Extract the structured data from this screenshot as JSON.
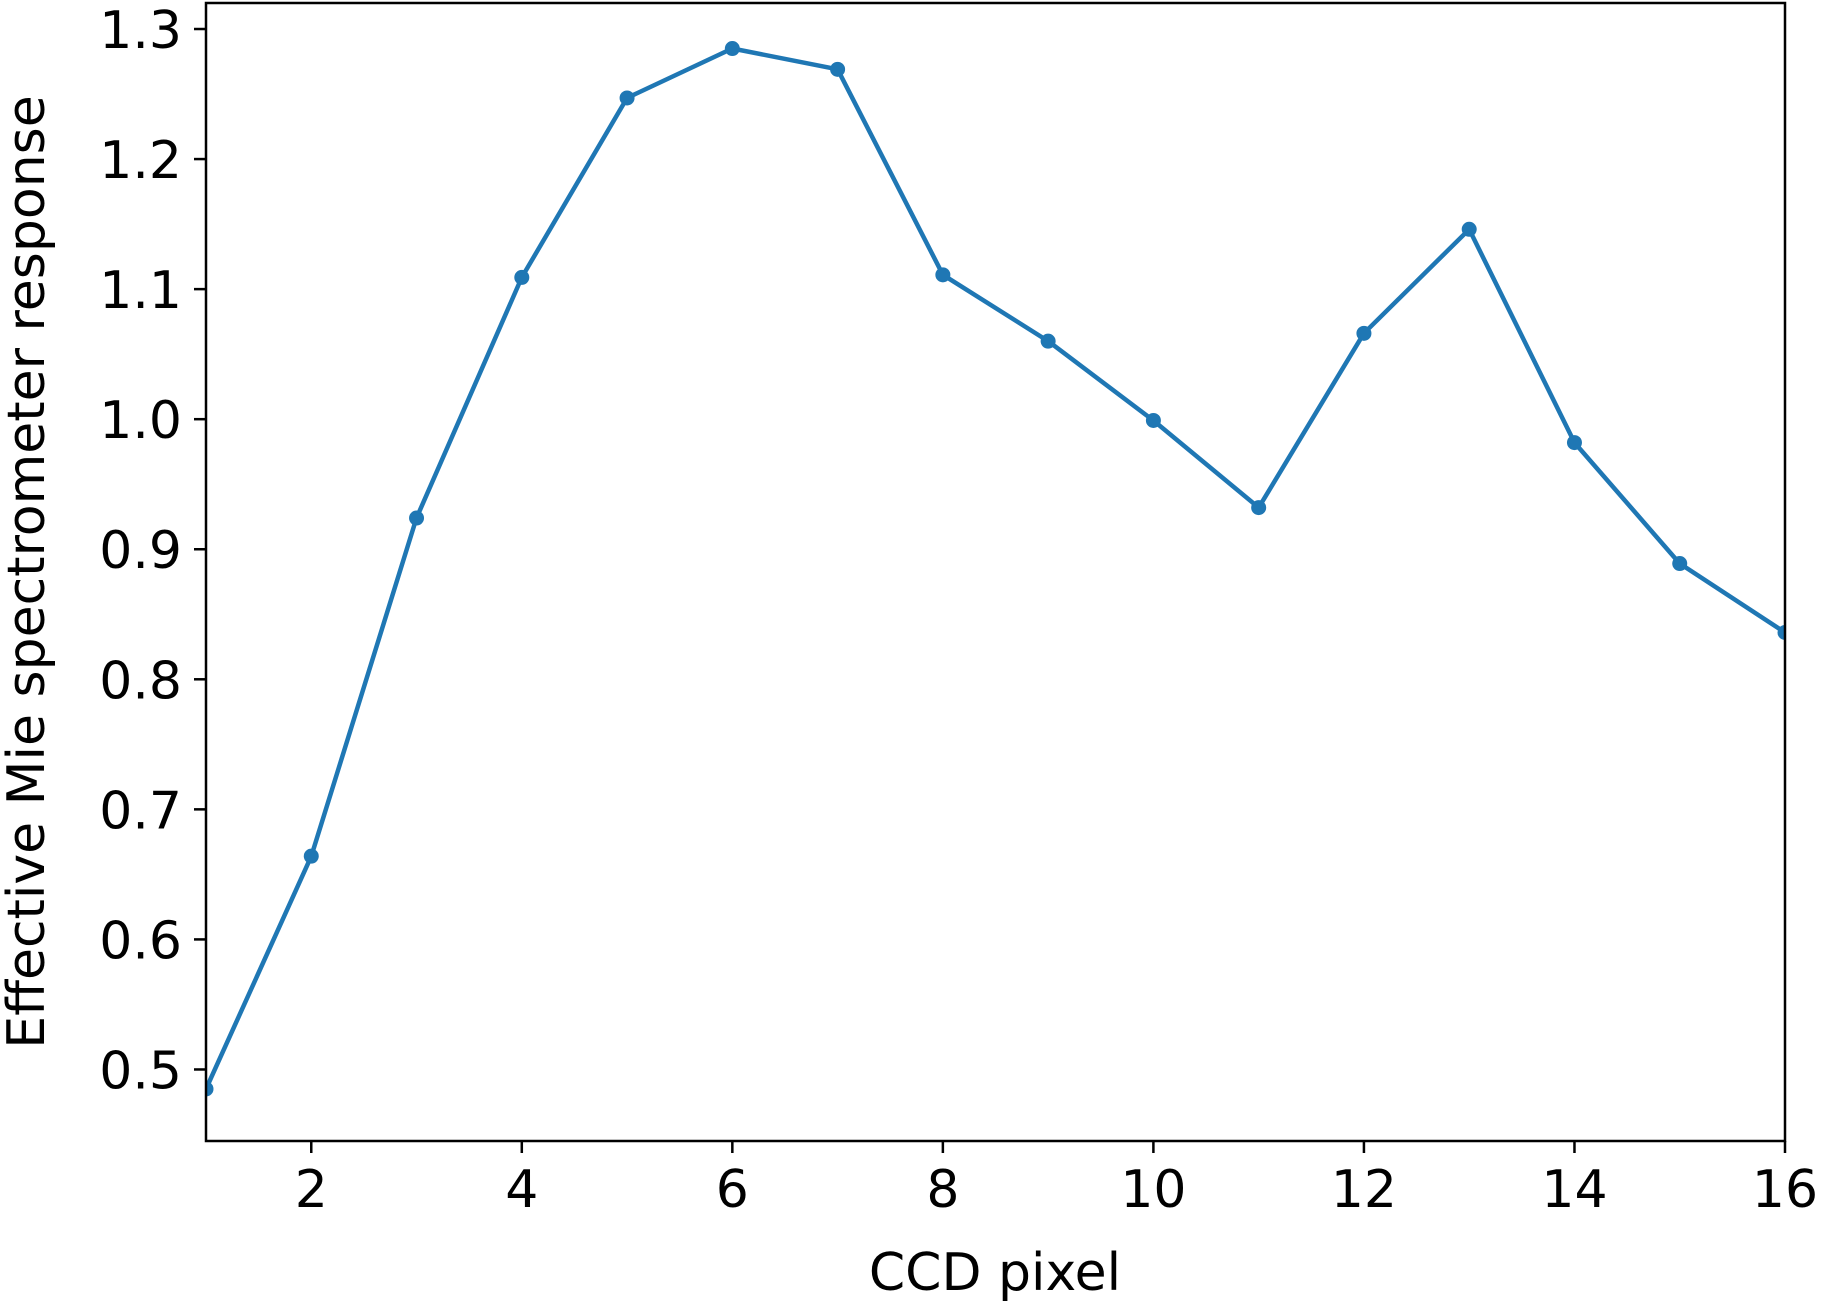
{
  "chart_data": {
    "type": "line",
    "title": "",
    "xlabel": "CCD pixel",
    "ylabel": "Effective Mie spectrometer response",
    "xlim": [
      1,
      16
    ],
    "ylim": [
      0.445,
      1.32
    ],
    "xticks": [
      2,
      4,
      6,
      8,
      10,
      12,
      14,
      16
    ],
    "yticks": [
      0.5,
      0.6,
      0.7,
      0.8,
      0.9,
      1.0,
      1.1,
      1.2,
      1.3
    ],
    "xtick_labels": [
      "2",
      "4",
      "6",
      "8",
      "10",
      "12",
      "14",
      "16"
    ],
    "ytick_labels": [
      "0.5",
      "0.6",
      "0.7",
      "0.8",
      "0.9",
      "1.0",
      "1.1",
      "1.2",
      "1.3"
    ],
    "grid": false,
    "legend": "none",
    "color": "#1f77b4",
    "marker": "circle",
    "x": [
      1,
      2,
      3,
      4,
      5,
      6,
      7,
      8,
      9,
      10,
      11,
      12,
      13,
      14,
      15,
      16
    ],
    "series": [
      {
        "values": [
          0.485,
          0.664,
          0.924,
          1.109,
          1.247,
          1.285,
          1.269,
          1.111,
          1.06,
          0.999,
          0.932,
          1.066,
          1.146,
          0.982,
          0.889,
          0.836
        ]
      }
    ]
  }
}
